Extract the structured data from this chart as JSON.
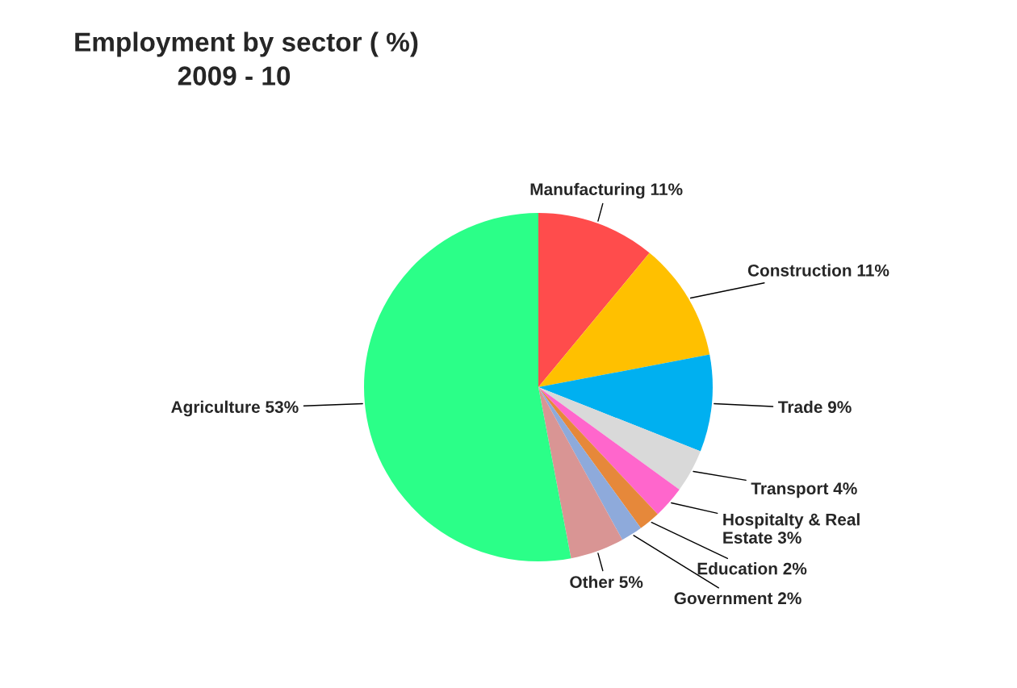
{
  "chart_data": {
    "type": "pie",
    "title": "Employment by sector ( %)",
    "subtitle": "2009 - 10",
    "categories": [
      "Manufacturing",
      "Construction",
      "Trade",
      "Transport",
      "Hospitalty & Real Estate",
      "Education",
      "Government",
      "Other",
      "Agriculture"
    ],
    "values": [
      11,
      11,
      9,
      4,
      3,
      2,
      2,
      5,
      53
    ],
    "value_labels": [
      "11%",
      "11%",
      "9%",
      "4%",
      "3%",
      "2%",
      "2%",
      "5%",
      "53%"
    ],
    "colors": [
      "#ff4c4c",
      "#ffc000",
      "#00b0f0",
      "#d9d9d9",
      "#ff66cc",
      "#e6883a",
      "#8eaadb",
      "#d99594",
      "#2bff88"
    ],
    "legend": false
  }
}
